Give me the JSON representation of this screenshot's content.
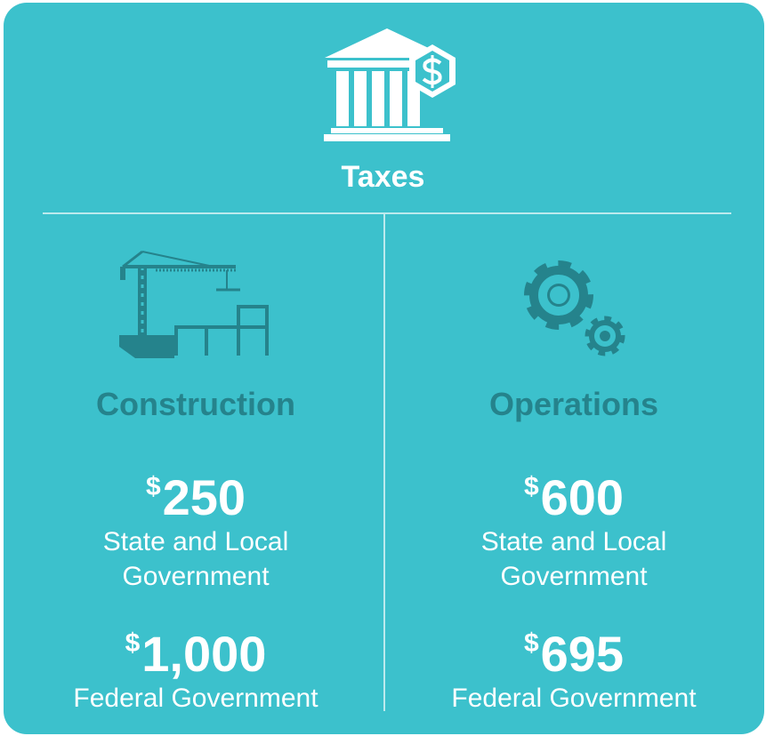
{
  "header": {
    "title": "Taxes"
  },
  "sections": [
    {
      "heading": "Construction",
      "items": [
        {
          "symbol": "$",
          "amount": "250",
          "label": "State and Local Government"
        },
        {
          "symbol": "$",
          "amount": "1,000",
          "label": "Federal Government"
        }
      ]
    },
    {
      "heading": "Operations",
      "items": [
        {
          "symbol": "$",
          "amount": "600",
          "label": "State and Local Government"
        },
        {
          "symbol": "$",
          "amount": "695",
          "label": "Federal Government"
        }
      ]
    }
  ]
}
